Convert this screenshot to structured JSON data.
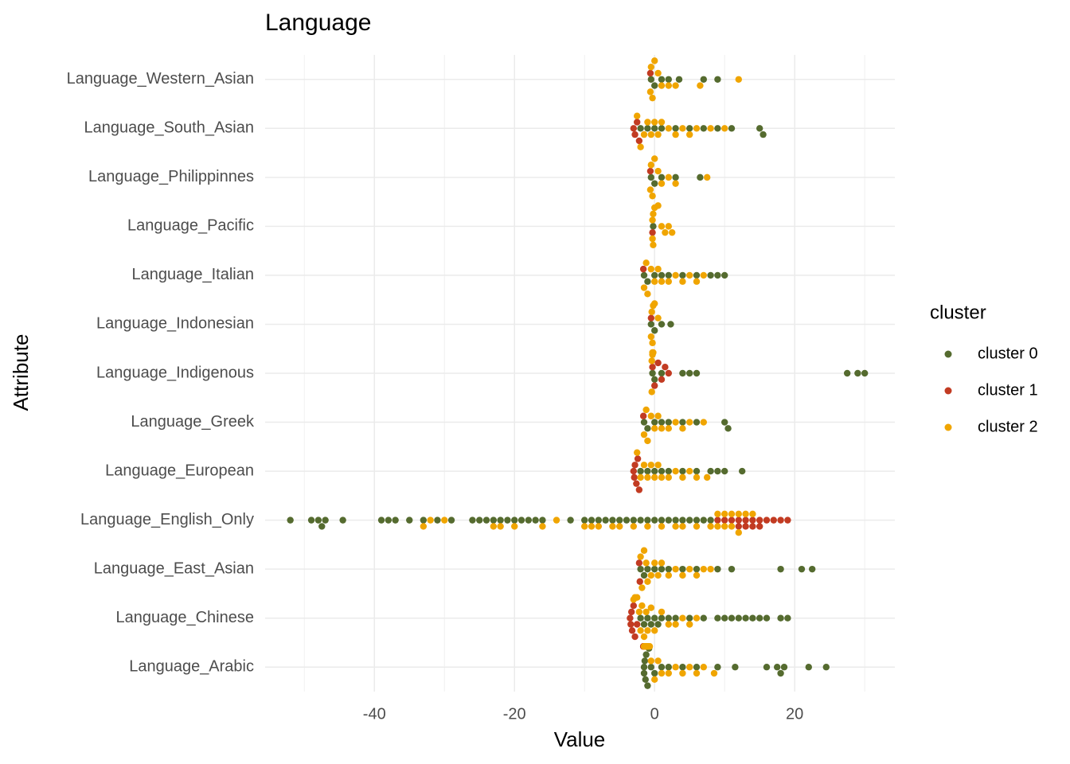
{
  "chart_data": {
    "type": "beeswarm",
    "title": "Language",
    "x_label": "Value",
    "y_label": "Attribute",
    "categories": [
      "Language_Arabic",
      "Language_Chinese",
      "Language_East_Asian",
      "Language_English_Only",
      "Language_European",
      "Language_Greek",
      "Language_Indigenous",
      "Language_Indonesian",
      "Language_Italian",
      "Language_Pacific",
      "Language_Philippinnes",
      "Language_South_Asian",
      "Language_Western_Asian"
    ],
    "xlim": [
      -55.6,
      34.3
    ],
    "xticks": [
      -40,
      -20,
      0,
      20
    ],
    "x_minor_grid": [
      -50,
      -30,
      -10,
      10,
      30
    ],
    "grid": true,
    "legend_title": "cluster",
    "legend_position": "right",
    "series": [
      {
        "name": "cluster 0",
        "color": "#556B2F",
        "values": [
          [
            -1.5,
            -1.5,
            -1.4,
            -1.3,
            -1.2,
            -1,
            -0.8,
            -0.5,
            0,
            1,
            2,
            4,
            6,
            9,
            11.5,
            16,
            17.5,
            18,
            18.5,
            22,
            24.5
          ],
          [
            -2,
            -1.5,
            -1,
            -0.5,
            0,
            0.5,
            1,
            2,
            3,
            5,
            7,
            9,
            10,
            11,
            12,
            13,
            14,
            15,
            16,
            18,
            19
          ],
          [
            -2,
            -1.5,
            -1,
            0,
            1,
            2,
            4,
            6,
            9,
            11,
            18,
            21,
            22.5
          ],
          [
            -52,
            -49,
            -48,
            -47.5,
            -47,
            -44.5,
            -39,
            -38,
            -37,
            -35,
            -33,
            -31,
            -29,
            -26,
            -25,
            -24,
            -23,
            -22,
            -21,
            -20,
            -19,
            -18,
            -17,
            -16,
            -12,
            -10,
            -9,
            -8,
            -7,
            -6,
            -5,
            -4,
            -3,
            -2,
            -1,
            0,
            1,
            2,
            3,
            4,
            5,
            6,
            7,
            8
          ],
          [
            -2,
            -1,
            0,
            1,
            2,
            4,
            6,
            8,
            9,
            10,
            12.5
          ],
          [
            -1.5,
            -1,
            0,
            1,
            2,
            4,
            6,
            10,
            10.5
          ],
          [
            -0.3,
            0,
            1,
            4,
            5,
            6,
            27.5,
            29,
            30
          ],
          [
            -0.5,
            0,
            1,
            2.3
          ],
          [
            -1.5,
            -1,
            0,
            1,
            2,
            4,
            6,
            8,
            9,
            10
          ],
          [
            -0.2
          ],
          [
            -0.5,
            0,
            1,
            3,
            6.5
          ],
          [
            -2,
            -1,
            0,
            1,
            3,
            5,
            7,
            9,
            11,
            15,
            15.5
          ],
          [
            -0.5,
            0,
            1,
            2,
            3.5,
            7,
            9
          ]
        ]
      },
      {
        "name": "cluster 1",
        "color": "#C23B22",
        "values": [
          [
            -1.6,
            -1.6,
            -1.5
          ],
          [
            -3.5,
            -3.4,
            -3.3,
            -3.2,
            -3,
            -2.8,
            -2.5
          ],
          [
            -2.2,
            -2.1
          ],
          [
            9,
            10,
            11,
            12,
            13,
            14,
            15,
            16,
            17,
            18,
            19,
            13,
            14,
            15,
            12
          ],
          [
            -3,
            -2.9,
            -2.8,
            -2.6,
            -2.4,
            -2.2
          ],
          [
            -1.6
          ],
          [
            -0.3,
            0,
            0.5,
            1,
            1.5,
            2
          ],
          [
            -0.5
          ],
          [
            -1.6
          ],
          [
            -0.3
          ],
          [
            -0.6
          ],
          [
            -3,
            -2.8,
            -2.5,
            -2.2
          ],
          [
            -0.6
          ]
        ]
      },
      {
        "name": "cluster 2",
        "color": "#F0A500",
        "values": [
          [
            -1.5,
            -1.4,
            -1.3,
            -1.2,
            -1.1,
            -1,
            -0.9,
            -0.7,
            -0.5,
            0,
            0.5,
            1,
            2,
            3,
            4,
            5,
            6,
            7,
            8.5
          ],
          [
            -3,
            -2.8,
            -2.5,
            -2.2,
            -2,
            -1.8,
            -1.5,
            -1.2,
            -1,
            -0.5,
            0,
            1,
            2,
            3,
            4,
            5,
            6
          ],
          [
            -2,
            -1.8,
            -1.5,
            -1.2,
            -1,
            -0.5,
            0,
            0.5,
            1,
            2,
            3,
            4,
            5,
            6,
            7,
            8
          ],
          [
            -33,
            -32,
            -30,
            -23,
            -22,
            -20,
            -16,
            -14,
            -10,
            -9,
            -8,
            -6,
            -5,
            -3,
            -1,
            1,
            3,
            4,
            6,
            8,
            9,
            10,
            11,
            12,
            13,
            14,
            10,
            11,
            12,
            9
          ],
          [
            -2.5,
            -2,
            -1.5,
            -1,
            -0.5,
            0,
            0.5,
            1,
            2,
            3,
            4,
            5,
            6,
            7.5
          ],
          [
            -1.5,
            -1.2,
            -1,
            -0.5,
            0,
            0.5,
            1,
            2,
            3,
            4,
            5,
            7
          ],
          [
            -0.4,
            -0.4,
            -0.3,
            -0.3,
            -0.2
          ],
          [
            -0.5,
            -0.4,
            -0.3,
            -0.2,
            0,
            0.5
          ],
          [
            -1.5,
            -1.2,
            -1,
            -0.5,
            0,
            0.5,
            1,
            2,
            3,
            4,
            5,
            6,
            7
          ],
          [
            -0.3,
            -0.3,
            -0.2,
            -0.2,
            0,
            0.5,
            1,
            1.5,
            2,
            2.5
          ],
          [
            -0.6,
            -0.5,
            -0.3,
            0,
            0.5,
            1,
            2,
            3,
            7.5
          ],
          [
            -2.5,
            -2,
            -1.5,
            -1,
            -0.5,
            0,
            0.5,
            1,
            2,
            3,
            4,
            5,
            6,
            8,
            10
          ],
          [
            -0.6,
            -0.5,
            -0.3,
            0,
            0.5,
            1,
            2,
            3,
            6.5,
            12
          ]
        ]
      }
    ]
  }
}
